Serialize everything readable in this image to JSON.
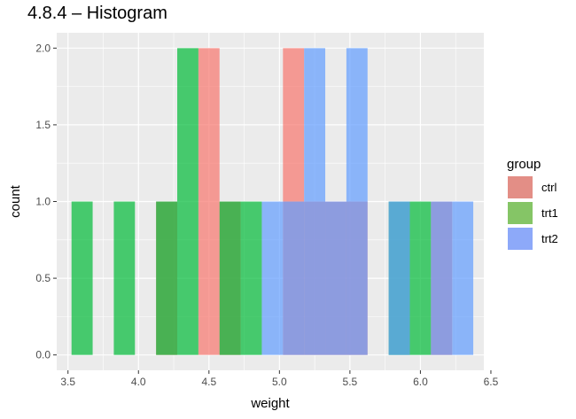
{
  "chart_data": {
    "type": "bar",
    "title": "4.8.4 – Histogram",
    "xlabel": "weight",
    "ylabel": "count",
    "xlim": [
      3.42,
      6.45
    ],
    "ylim": [
      -0.1,
      2.1
    ],
    "x_ticks": [
      3.5,
      4.0,
      4.5,
      5.0,
      5.5,
      6.0,
      6.5
    ],
    "x_tick_labels": [
      "3.5",
      "4.0",
      "4.5",
      "5.0",
      "5.5",
      "6.0",
      "6.5"
    ],
    "y_ticks": [
      0,
      0.5,
      1,
      1.5,
      2
    ],
    "y_tick_labels": [
      "0.0",
      "0.5",
      "1.0",
      "1.5",
      "2.0"
    ],
    "bin_width": 0.15,
    "grid": true,
    "legend": {
      "title": "group",
      "position": "right",
      "entries": [
        {
          "label": "ctrl",
          "color": "#E38E86"
        },
        {
          "label": "trt1",
          "color": "#85C566"
        },
        {
          "label": "trt2",
          "color": "#8DA9F9"
        }
      ]
    },
    "series": [
      {
        "name": "ctrl",
        "color": "#F8766D",
        "bins": [
          {
            "x": 4.2,
            "count": 1
          },
          {
            "x": 4.5,
            "count": 2
          },
          {
            "x": 4.65,
            "count": 1
          },
          {
            "x": 5.1,
            "count": 2
          },
          {
            "x": 5.25,
            "count": 1
          },
          {
            "x": 5.4,
            "count": 1
          },
          {
            "x": 5.55,
            "count": 1
          },
          {
            "x": 6.15,
            "count": 1
          }
        ]
      },
      {
        "name": "trt1",
        "color": "#00BA38",
        "bins": [
          {
            "x": 3.6,
            "count": 1
          },
          {
            "x": 3.9,
            "count": 1
          },
          {
            "x": 4.2,
            "count": 1
          },
          {
            "x": 4.35,
            "count": 2
          },
          {
            "x": 4.65,
            "count": 1
          },
          {
            "x": 4.8,
            "count": 1
          },
          {
            "x": 5.85,
            "count": 1
          },
          {
            "x": 6.0,
            "count": 1
          }
        ]
      },
      {
        "name": "trt2",
        "color": "#619CFF",
        "bins": [
          {
            "x": 4.95,
            "count": 1
          },
          {
            "x": 5.1,
            "count": 1
          },
          {
            "x": 5.25,
            "count": 2
          },
          {
            "x": 5.4,
            "count": 1
          },
          {
            "x": 5.55,
            "count": 2
          },
          {
            "x": 5.85,
            "count": 1
          },
          {
            "x": 6.15,
            "count": 1
          },
          {
            "x": 6.3,
            "count": 1
          }
        ]
      }
    ]
  }
}
